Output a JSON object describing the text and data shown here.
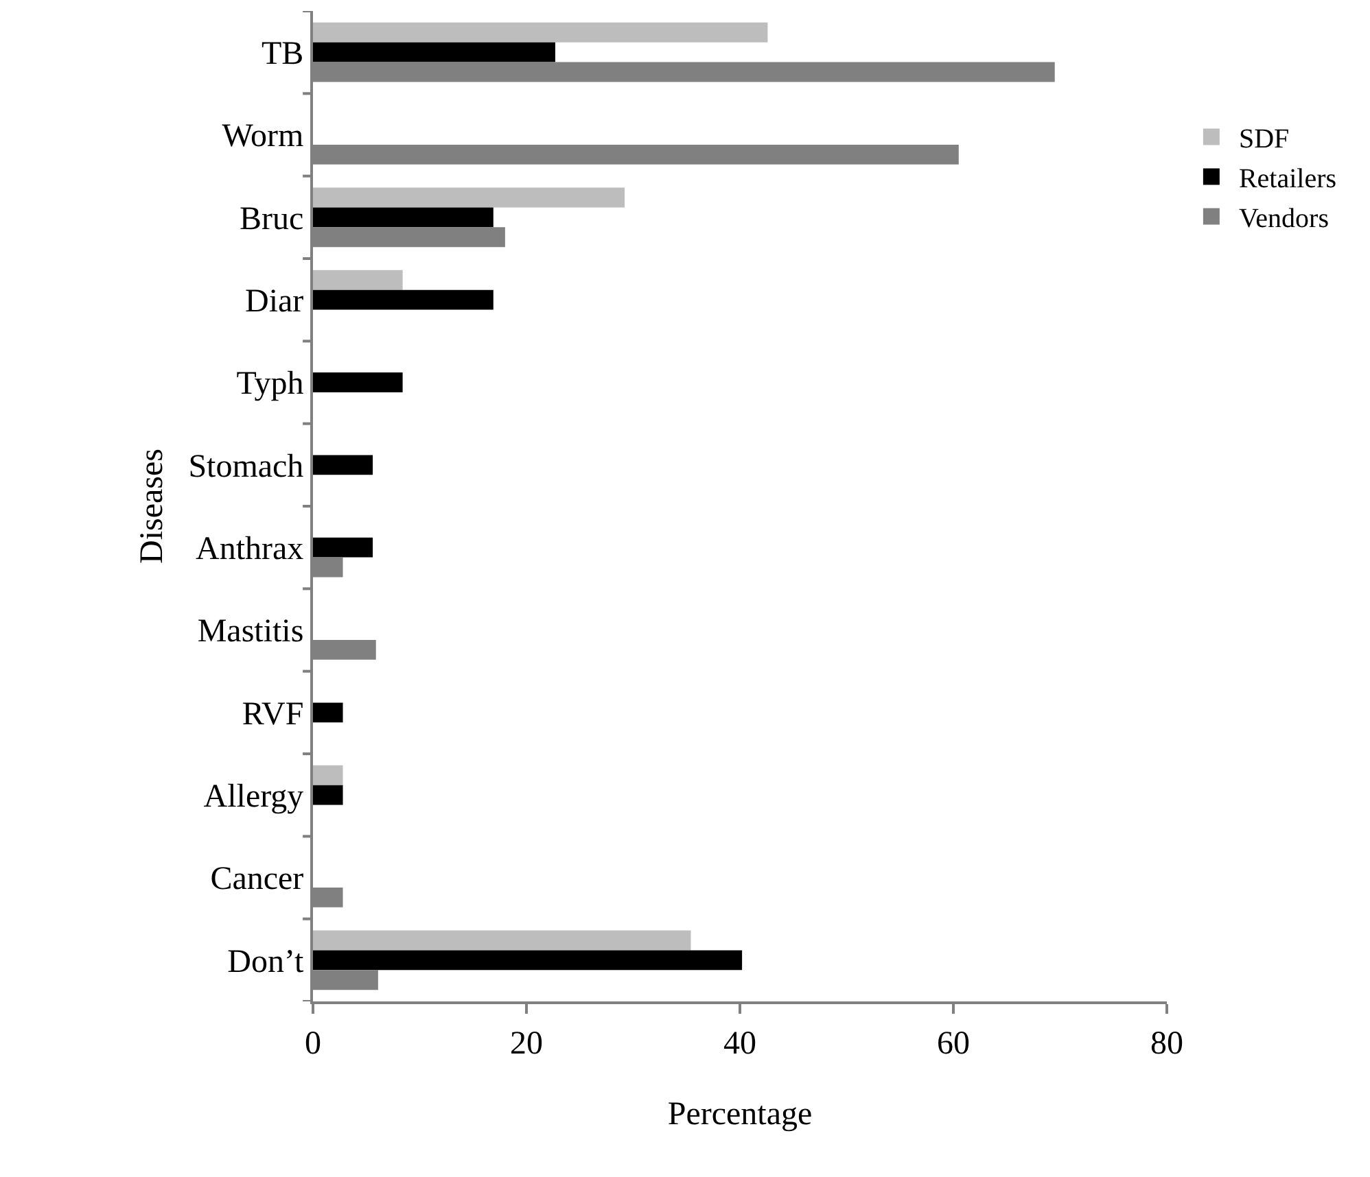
{
  "chart_data": {
    "type": "bar",
    "orientation": "horizontal",
    "xlabel": "Percentage",
    "ylabel": "Diseases",
    "categories": [
      "TB",
      "Worm",
      "Bruc",
      "Diar",
      "Typh",
      "Stomach",
      "Anthrax",
      "Mastitis",
      "RVF",
      "Allergy",
      "Cancer",
      "Don’t"
    ],
    "series": [
      {
        "name": "SDF",
        "color": "#bdbdbd",
        "values": [
          42.6,
          null,
          29.2,
          8.4,
          null,
          null,
          null,
          null,
          null,
          2.8,
          null,
          35.4
        ]
      },
      {
        "name": "Retailers",
        "color": "#000000",
        "values": [
          22.7,
          null,
          16.9,
          16.9,
          8.4,
          5.6,
          5.6,
          null,
          2.8,
          2.8,
          null,
          40.2
        ]
      },
      {
        "name": "Vendors",
        "color": "#808080",
        "values": [
          69.5,
          60.5,
          18.0,
          null,
          null,
          null,
          2.8,
          5.9,
          null,
          null,
          2.8,
          6.1
        ]
      }
    ],
    "xlim": [
      0,
      80
    ],
    "xticks": [
      0,
      20,
      40,
      60,
      80
    ],
    "grid": false,
    "legend": "right"
  }
}
